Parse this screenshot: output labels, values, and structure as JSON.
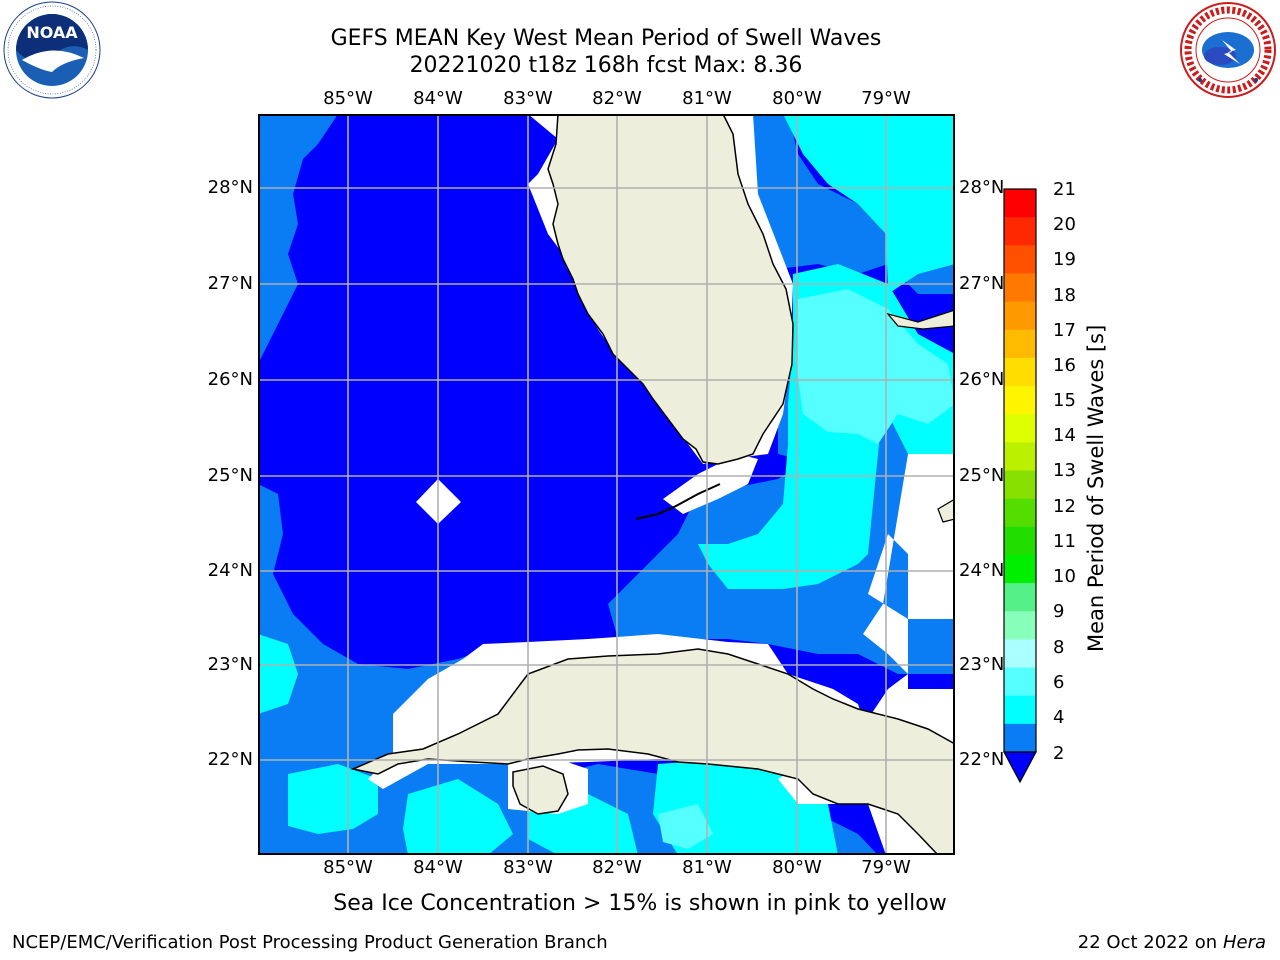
{
  "title": {
    "line1": "GEFS MEAN Key West Mean Period of Swell Waves",
    "line2": "20221020 t18z 168h fcst   Max: 8.36"
  },
  "logos": {
    "left": {
      "name": "NOAA",
      "text": "NOAA",
      "ring_text": "NATIONAL OCEANIC AND ATMOSPHERIC ADMINISTRATION · U.S. DEPARTMENT OF COMMERCE"
    },
    "right": {
      "name": "National Weather Service",
      "ring_text": "NATIONAL WEATHER SERVICE"
    }
  },
  "map": {
    "lon_labels": [
      "85°W",
      "84°W",
      "83°W",
      "82°W",
      "81°W",
      "80°W",
      "79°W"
    ],
    "lat_labels": [
      "28°N",
      "27°N",
      "26°N",
      "25°N",
      "24°N",
      "23°N",
      "22°N"
    ],
    "gridlines": true,
    "colors": {
      "land": "#eeeedc",
      "blue_2_4": "#0000ff",
      "blue_4_6": "#0a7df5",
      "cyan_6_8": "#00ffff",
      "lightcyan_8_9": "#55ffff",
      "grid": "#b0b0b0",
      "no_data": "#ffffff"
    }
  },
  "colorbar": {
    "title": "Mean Period of Swell Waves [s]",
    "ticks": [
      "21",
      "20",
      "19",
      "18",
      "17",
      "16",
      "15",
      "14",
      "13",
      "12",
      "11",
      "10",
      "9",
      "8",
      "6",
      "4",
      "2"
    ],
    "colors": [
      "#ff0000",
      "#ff2800",
      "#ff5000",
      "#ff7800",
      "#ff9900",
      "#ffbb00",
      "#ffdd00",
      "#fff500",
      "#ddff00",
      "#bbf000",
      "#88e000",
      "#55dd00",
      "#22dd00",
      "#00ee00",
      "#55f088",
      "#88ffbb",
      "#aaffff",
      "#55ffff",
      "#00ffff",
      "#0a7df5"
    ],
    "extend_color": "#0000ff"
  },
  "caption": "Sea Ice Concentration > 15% is shown in pink to yellow",
  "footer": {
    "left": "NCEP/EMC/Verification Post Processing Product Generation Branch",
    "right_prefix": "22 Oct 2022 on ",
    "right_host": "Hera"
  }
}
